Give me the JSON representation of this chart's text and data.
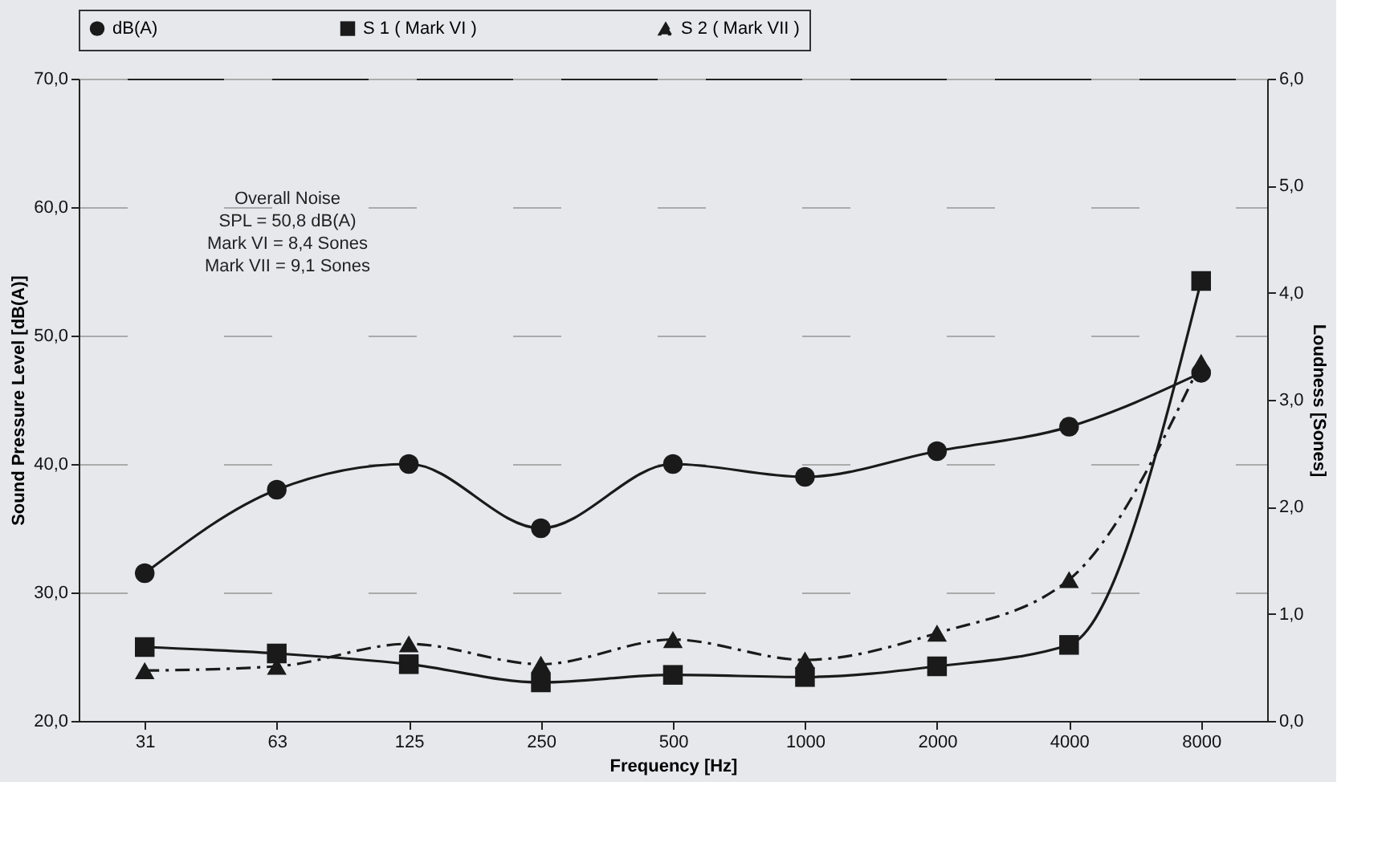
{
  "chart_data": {
    "type": "line",
    "xlabel": "Frequency [Hz]",
    "ylabel": "Sound Pressure Level  [dB(A)]",
    "y2label": "Loudness [Sones]",
    "categories": [
      "31",
      "63",
      "125",
      "250",
      "500",
      "1000",
      "2000",
      "4000",
      "8000"
    ],
    "series": [
      {
        "name": "dB(A)",
        "color": "#1a1a1a",
        "marker": "circle",
        "line_style": "solid",
        "values": [
          31.5,
          38.0,
          40.0,
          35.0,
          40.0,
          39.0,
          41.0,
          42.9,
          47.1
        ]
      },
      {
        "name": "S 1 ( Mark VI )",
        "color": "#1a1a1a",
        "marker": "square",
        "line_style": "solid",
        "axis": "y2",
        "values": [
          0.69,
          0.63,
          0.53,
          0.36,
          0.43,
          0.41,
          0.51,
          0.71,
          4.11
        ]
      },
      {
        "name": "S 2 ( Mark VII )",
        "color": "#1a1a1a",
        "marker": "triangle",
        "line_style": "dashed",
        "axis": "y2",
        "values": [
          0.47,
          0.51,
          0.72,
          0.53,
          0.76,
          0.57,
          0.82,
          1.32,
          3.35
        ]
      }
    ],
    "ylim": [
      20,
      70
    ],
    "yticks": [
      {
        "value": 20,
        "label": "20,0"
      },
      {
        "value": 30,
        "label": "30,0"
      },
      {
        "value": 40,
        "label": "40,0"
      },
      {
        "value": 50,
        "label": "50,0"
      },
      {
        "value": 60,
        "label": "60,0"
      },
      {
        "value": 70,
        "label": "70,0"
      }
    ],
    "y2lim": [
      0,
      6
    ],
    "y2ticks": [
      {
        "value": 0,
        "label": "0,0"
      },
      {
        "value": 1,
        "label": "1,0"
      },
      {
        "value": 2,
        "label": "2,0"
      },
      {
        "value": 3,
        "label": "3,0"
      },
      {
        "value": 4,
        "label": "4,0"
      },
      {
        "value": 5,
        "label": "5,0"
      },
      {
        "value": 6,
        "label": "6,0"
      }
    ],
    "grid": "y",
    "legend": "top",
    "annotations": [
      "Overall Noise",
      "SPL  =  50,8 dB(A)",
      "Mark VI  =  8,4  Sones",
      "Mark VII  =  9,1  Sones"
    ]
  }
}
